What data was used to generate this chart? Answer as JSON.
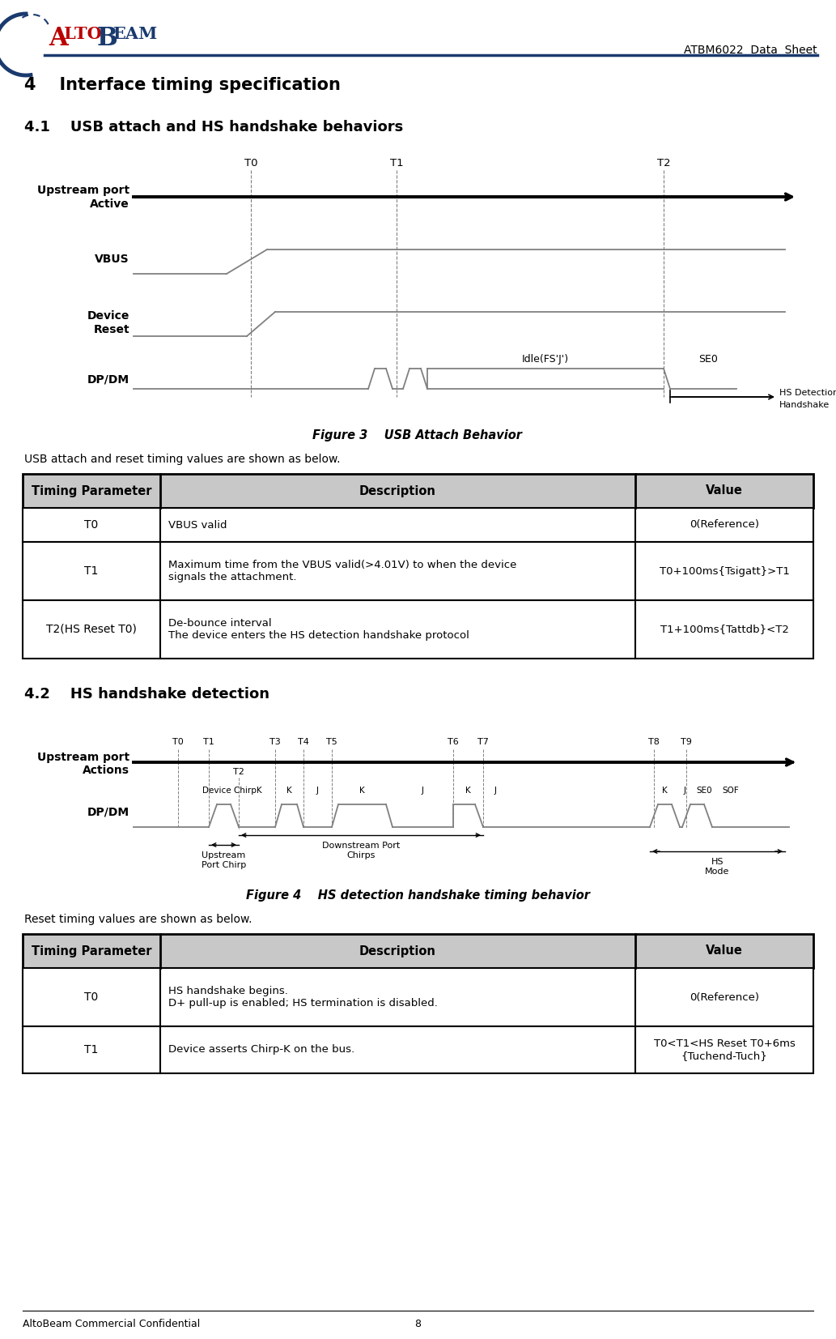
{
  "page_title": "ATBM6022  Data  Sheet",
  "section4_title": "4    Interface timing specification",
  "section41_title": "4.1    USB attach and HS handshake behaviors",
  "figure3_caption": "Figure 3    USB Attach Behavior",
  "fig3_text_intro": "USB attach and reset timing values are shown as below.",
  "table1_headers": [
    "Timing Parameter",
    "Description",
    "Value"
  ],
  "table1_rows": [
    [
      "T0",
      "VBUS valid",
      "0(Reference)"
    ],
    [
      "T1",
      "Maximum time from the VBUS valid(>4.01V) to when the device\nsignals the attachment.",
      "T0+100ms{Tsigatt}>T1"
    ],
    [
      "T2(HS Reset T0)",
      "De-bounce interval\nThe device enters the HS detection handshake protocol",
      "T1+100ms{Tattdb}<T2"
    ]
  ],
  "section42_title": "4.2    HS handshake detection",
  "figure4_caption": "Figure 4    HS detection handshake timing behavior",
  "fig4_text_intro": "Reset timing values are shown as below.",
  "table2_headers": [
    "Timing Parameter",
    "Description",
    "Value"
  ],
  "table2_rows": [
    [
      "T0",
      "HS handshake begins.\nD+ pull-up is enabled; HS termination is disabled.",
      "0(Reference)"
    ],
    [
      "T1",
      "Device asserts Chirp-K on the bus.",
      "T0<T1<HS Reset T0+6ms\n{Tuchend-Tuch}"
    ]
  ],
  "footer_left": "AltoBeam Commercial Confidential",
  "footer_center": "8",
  "bg_color": "#ffffff",
  "table_header_bg": "#c8c8c8",
  "table_border_color": "#000000"
}
